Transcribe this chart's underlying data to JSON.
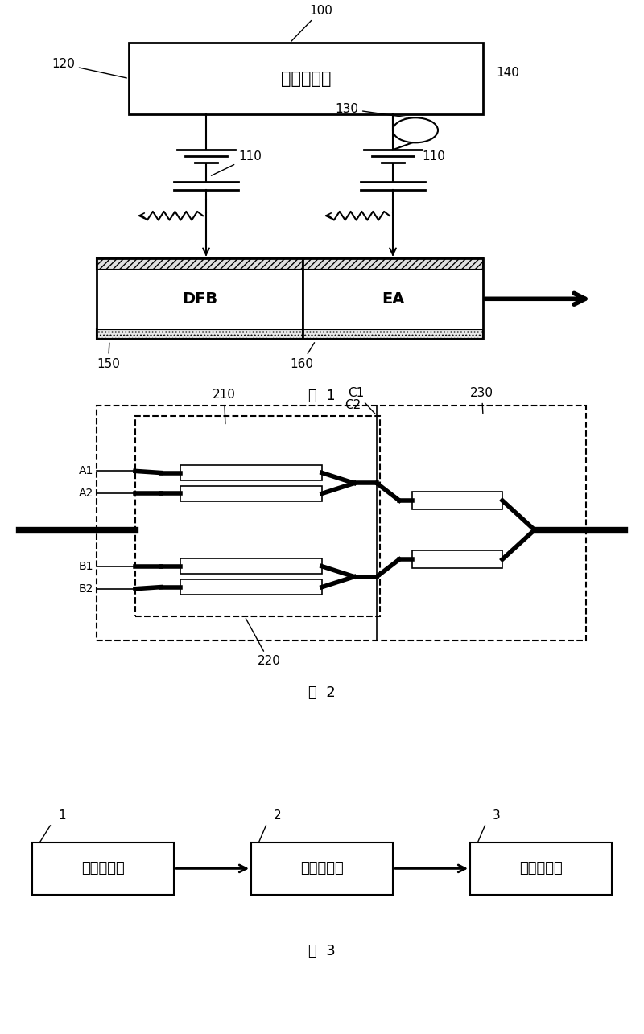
{
  "bg_color": "#ffffff",
  "fig1_caption": "图  1",
  "fig2_caption": "图  2",
  "fig3_caption": "图  3"
}
